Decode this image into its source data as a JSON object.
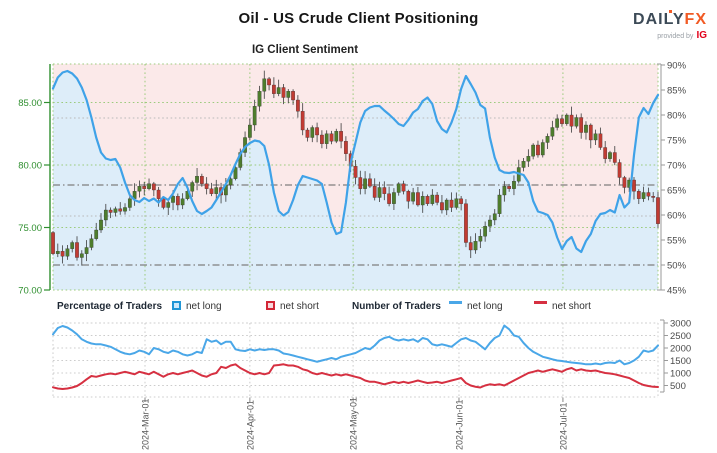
{
  "header": {
    "title": "Oil - US Crude Client Positioning",
    "subtitle": "IG Client Sentiment",
    "logo": {
      "daily": "DAILY",
      "fx": "FX",
      "provided": "provided by",
      "ig": "IG"
    }
  },
  "legend": {
    "percentage_title": "Percentage of Traders",
    "number_title": "Number of Traders",
    "net_long_label": "net long",
    "net_short_label": "net short"
  },
  "colors": {
    "pink": "#fbe9e9",
    "blue_fill": "#ddedf9",
    "sentiment": "#3fa2e8",
    "grid_green": "#9ccb7d",
    "grid_gray": "#cccccc",
    "ref_gray": "#7f7f7f",
    "candle_up": "#4e7d2d",
    "candle_down": "#c13b33",
    "wick": "#3a3a3a",
    "axis_green": "#2f8f2f",
    "axis_gray": "#4a4a4a",
    "spine_gray": "#9a9a9a",
    "count_long": "#4aa7e8",
    "count_short": "#d63041",
    "swatch_long_border": "#2196d6",
    "swatch_long_fill": "#cfe9fb",
    "swatch_short_border": "#d32535",
    "swatch_short_fill": "#f8d7dc"
  },
  "chart_data": [
    {
      "type": "candlestick+line",
      "title": "IG Client Sentiment",
      "price_axis": {
        "ticks": [
          70,
          75,
          80,
          85
        ],
        "range": [
          69.8,
          88.1
        ]
      },
      "pct_axis": {
        "ticks": [
          45,
          50,
          55,
          60,
          65,
          70,
          75,
          80,
          85,
          90
        ],
        "range": [
          45,
          90
        ]
      },
      "months": [
        {
          "label": "2024-Mar-01",
          "index": 19.16
        },
        {
          "label": "2024-Apr-01",
          "index": 41.0
        },
        {
          "label": "2024-May-01",
          "index": 62.5
        },
        {
          "label": "2024-Jun-01",
          "index": 84.55
        },
        {
          "label": "2024-Jul-01",
          "index": 106.2
        }
      ],
      "reference_lines": [
        {
          "pct": 79.4,
          "style": "dotted"
        },
        {
          "pct": 59.8,
          "style": "dotted"
        },
        {
          "pct": 66.0,
          "style": "dashdot"
        },
        {
          "pct": 50.0,
          "style": "dashdot"
        }
      ],
      "candles": {
        "open_first": 74.6,
        "closes": [
          72.9,
          73.1,
          72.7,
          73.3,
          73.8,
          72.6,
          72.9,
          73.4,
          74.1,
          74.8,
          75.6,
          76.4,
          76.2,
          76.5,
          76.3,
          76.6,
          77.3,
          77.9,
          78.3,
          78.1,
          78.5,
          78.0,
          77.3,
          76.6,
          77.0,
          77.5,
          76.8,
          77.3,
          77.9,
          78.6,
          79.1,
          78.5,
          78.1,
          77.7,
          78.2,
          77.6,
          78.4,
          78.9,
          79.8,
          81.0,
          82.2,
          83.2,
          84.7,
          85.9,
          86.9,
          86.4,
          85.7,
          86.2,
          85.4,
          85.9,
          85.2,
          84.3,
          82.8,
          82.2,
          83.0,
          82.4,
          81.7,
          82.5,
          81.9,
          82.7,
          81.9,
          80.9,
          79.9,
          79.0,
          78.1,
          78.9,
          78.3,
          77.4,
          78.2,
          77.7,
          76.9,
          77.8,
          78.5,
          77.9,
          77.1,
          77.8,
          76.8,
          77.5,
          76.9,
          77.6,
          77.0,
          76.4,
          77.2,
          76.6,
          77.3,
          76.9,
          73.8,
          73.2,
          73.9,
          74.3,
          75.1,
          75.6,
          76.1,
          77.6,
          78.3,
          78.1,
          78.7,
          79.8,
          80.3,
          80.7,
          81.6,
          80.8,
          81.8,
          82.3,
          83.0,
          83.7,
          83.3,
          84.0,
          83.1,
          83.8,
          82.6,
          83.2,
          82.0,
          82.5,
          81.4,
          80.5,
          81.0,
          80.2,
          79.0,
          78.2,
          78.8,
          77.9,
          77.3,
          77.8,
          77.5,
          77.4,
          75.3
        ]
      },
      "sentiment_pct": [
        85.3,
        87.5,
        88.5,
        88.8,
        88.3,
        87.3,
        85.5,
        83.0,
        79.5,
        75.5,
        72.5,
        71.3,
        71.0,
        71.2,
        69.5,
        66.5,
        64.0,
        63.0,
        62.6,
        63.4,
        62.8,
        63.3,
        62.5,
        63.6,
        63.0,
        64.3,
        66.2,
        67.4,
        65.5,
        62.8,
        60.8,
        60.2,
        60.8,
        61.5,
        63.0,
        64.6,
        66.2,
        68.0,
        70.2,
        72.2,
        73.6,
        74.4,
        74.9,
        74.7,
        73.8,
        70.0,
        64.5,
        60.8,
        59.9,
        60.6,
        63.0,
        66.0,
        67.8,
        67.5,
        67.2,
        66.9,
        66.2,
        62.5,
        58.5,
        56.2,
        56.6,
        62.5,
        70.5,
        74.5,
        78.5,
        80.8,
        81.5,
        81.8,
        81.8,
        80.9,
        80.1,
        79.2,
        78.2,
        77.8,
        79.0,
        80.5,
        81.2,
        82.8,
        83.5,
        82.2,
        78.8,
        77.2,
        76.5,
        78.5,
        81.2,
        85.2,
        87.8,
        86.2,
        84.5,
        82.0,
        81.3,
        75.5,
        71.5,
        69.0,
        68.5,
        68.4,
        68.6,
        68.3,
        68.0,
        66.5,
        62.8,
        60.7,
        60.4,
        60.0,
        58.5,
        55.5,
        53.2,
        54.8,
        55.6,
        53.3,
        52.6,
        54.8,
        56.2,
        58.8,
        60.2,
        60.4,
        61.0,
        60.5,
        64.0,
        61.5,
        62.5,
        72.0,
        79.5,
        81.4,
        80.2,
        82.4,
        84.0
      ]
    },
    {
      "type": "line",
      "count_axis": {
        "ticks": [
          500,
          1000,
          1500,
          2000,
          2500,
          3000
        ],
        "range": [
          150,
          3000
        ]
      },
      "series": [
        {
          "name": "net long",
          "values": [
            2550,
            2800,
            2880,
            2820,
            2700,
            2550,
            2350,
            2250,
            2180,
            2150,
            2150,
            2100,
            2050,
            1950,
            1850,
            1780,
            1750,
            1800,
            1900,
            1850,
            1750,
            2000,
            1950,
            1850,
            1800,
            1900,
            1850,
            1750,
            1700,
            1750,
            1850,
            1800,
            2350,
            2250,
            2300,
            2150,
            2250,
            2250,
            1950,
            1900,
            1880,
            1950,
            1900,
            1950,
            1920,
            1950,
            1950,
            1900,
            1780,
            1750,
            1700,
            1650,
            1600,
            1550,
            1500,
            1450,
            1500,
            1550,
            1600,
            1550,
            1650,
            1700,
            1750,
            1800,
            1900,
            2000,
            1950,
            2100,
            2300,
            2400,
            2450,
            2350,
            2300,
            2350,
            2300,
            2350,
            2250,
            2400,
            2350,
            2150,
            2100,
            2150,
            2100,
            2050,
            2200,
            2350,
            2400,
            2300,
            2250,
            2100,
            1950,
            2200,
            2400,
            2500,
            2900,
            2750,
            2500,
            2450,
            2200,
            2000,
            1850,
            1750,
            1650,
            1600,
            1550,
            1500,
            1480,
            1450,
            1420,
            1400,
            1380,
            1350,
            1350,
            1380,
            1350,
            1400,
            1420,
            1400,
            1500,
            1350,
            1400,
            1500,
            1650,
            1900,
            1850,
            1900,
            2100
          ]
        },
        {
          "name": "net short",
          "values": [
            430,
            380,
            360,
            380,
            420,
            480,
            600,
            750,
            880,
            850,
            900,
            950,
            980,
            950,
            1000,
            1050,
            1000,
            950,
            1050,
            1000,
            950,
            1050,
            950,
            850,
            950,
            1000,
            950,
            1000,
            1050,
            1100,
            1000,
            900,
            850,
            950,
            1000,
            1250,
            1200,
            1300,
            1350,
            1200,
            1100,
            1000,
            950,
            1000,
            950,
            1000,
            1300,
            1320,
            1350,
            1300,
            1300,
            1250,
            1150,
            1100,
            1000,
            950,
            1000,
            950,
            900,
            950,
            900,
            950,
            900,
            850,
            800,
            700,
            650,
            650,
            600,
            550,
            600,
            650,
            600,
            650,
            600,
            650,
            700,
            650,
            600,
            620,
            650,
            600,
            650,
            700,
            750,
            800,
            600,
            500,
            450,
            420,
            500,
            550,
            520,
            550,
            500,
            600,
            700,
            800,
            900,
            1000,
            1050,
            1100,
            1050,
            1100,
            1150,
            1100,
            1050,
            1150,
            1200,
            1100,
            1150,
            1100,
            1080,
            1100,
            1050,
            1000,
            980,
            950,
            900,
            850,
            800,
            700,
            600,
            520,
            480,
            450,
            440
          ]
        }
      ]
    }
  ]
}
